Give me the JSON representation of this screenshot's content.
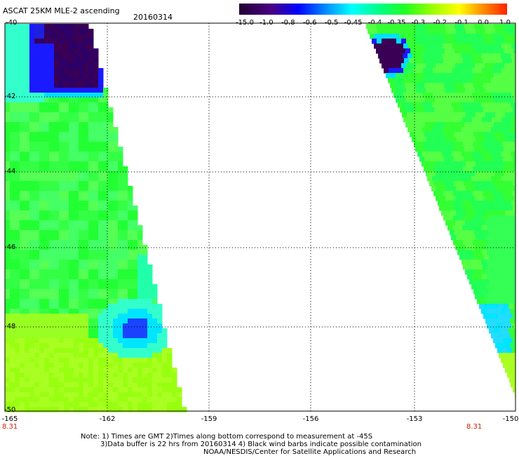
{
  "header": {
    "title": "ASCAT 25KM MLE-2 ascending",
    "date": "20160314"
  },
  "colorbar": {
    "labels": [
      "-15.0",
      "-1.0",
      "-0.8",
      "-0.6",
      "-0.5",
      "-0.45",
      "-0.4",
      "-0.35",
      "-0.3",
      "-0.2",
      "-0.1",
      "0.0",
      "1.0"
    ]
  },
  "axes": {
    "y_ticks": [
      "-40",
      "-42",
      "-44",
      "-46",
      "-48",
      "-50"
    ],
    "x_ticks": [
      "-165",
      "-162",
      "-159",
      "-156",
      "-153",
      "-150"
    ],
    "time_left": "8.31",
    "time_right": "8.31"
  },
  "notes": {
    "line1": "Note: 1) Times are GMT 2)Times along bottom correspond to measurement at -45S",
    "line2": "3)Data buffer is 22 hrs from 20160314 4) Black wind barbs indicate possible contamination",
    "line3": "NOAA/NESDIS/Center for Satellite Applications and Research"
  },
  "colors": {
    "dark_purple": "#3a0050",
    "blue": "#1a1aff",
    "cyan": "#00ffff",
    "green": "#22ff22",
    "lime": "#aaff11",
    "red_text": "#cc2200"
  }
}
